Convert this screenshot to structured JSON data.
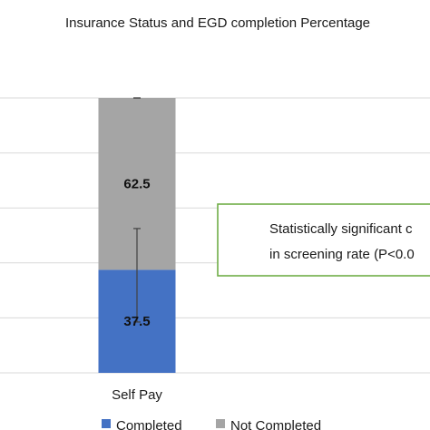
{
  "chart_data": {
    "type": "bar",
    "stacked": true,
    "title": "Insurance Status and EGD completion Percentage",
    "categories": [
      "Self Pay"
    ],
    "series": [
      {
        "name": "Completed",
        "values": [
          37.5
        ],
        "color": "#4472C4"
      },
      {
        "name": "Not Completed",
        "values": [
          62.5
        ],
        "color": "#A5A5A5"
      }
    ],
    "data_labels": [
      "37.5",
      "62.5"
    ],
    "ylim": [
      0,
      100
    ],
    "grid": true,
    "error_bars": [
      {
        "category": "Self Pay",
        "series": "Completed",
        "center": 37.5,
        "low": 18.5,
        "high": 52.5
      },
      {
        "category": "Self Pay",
        "series": "Not Completed",
        "center": 100,
        "low": 100,
        "high": 100
      }
    ],
    "legend": "bottom",
    "annotation": {
      "line1": "Statistically significant c",
      "line2": "in screening rate (P<0.0",
      "border_color": "#70AD47"
    }
  }
}
